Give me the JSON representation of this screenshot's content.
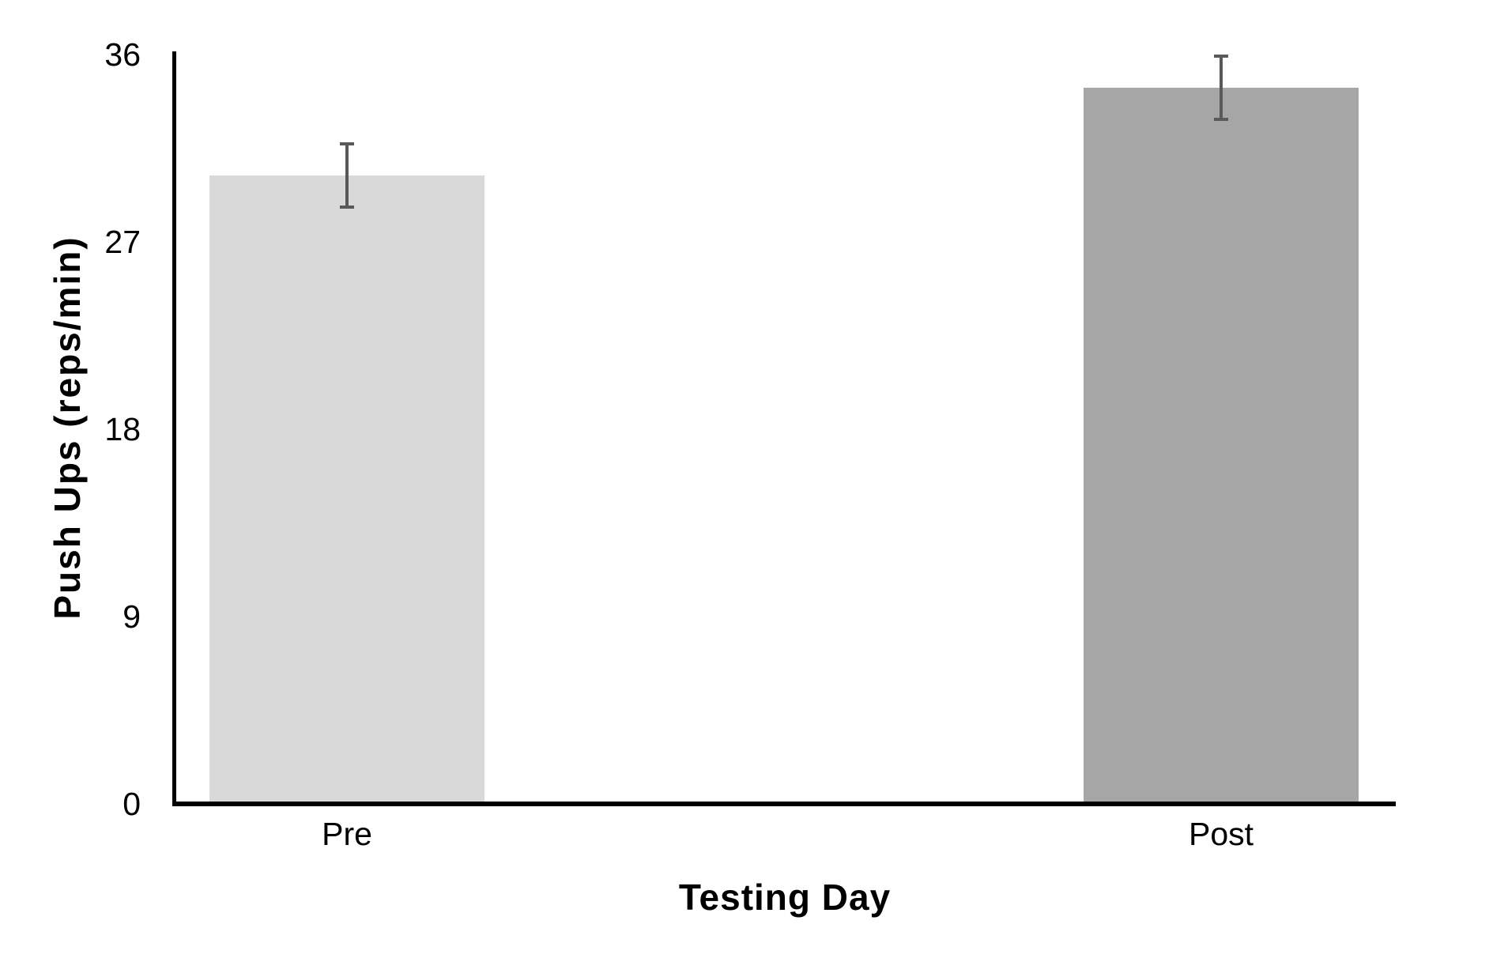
{
  "chart_data": {
    "type": "bar",
    "title": "",
    "categories": [
      "Pre",
      "Post"
    ],
    "values": [
      30.2,
      34.4
    ],
    "error_bars": [
      1.6,
      1.6
    ],
    "xlabel": "Testing Day",
    "ylabel": "Push Ups (reps/min)",
    "yticks": [
      0,
      9,
      18,
      27,
      36
    ],
    "ylim": [
      0,
      36
    ],
    "grid": false,
    "legend_position": "none",
    "bar_colors": [
      "#d9d9d9",
      "#a6a6a6"
    ],
    "error_bar_color": "#595959",
    "axis_color": "#000000",
    "text_color": "#000000",
    "background_color": "#ffffff"
  }
}
